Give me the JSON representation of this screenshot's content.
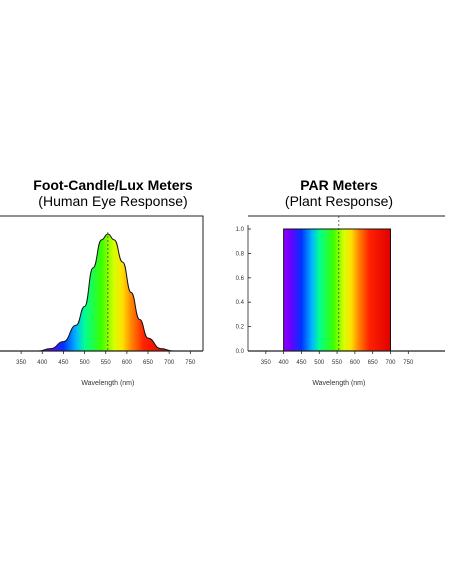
{
  "chart_data": [
    {
      "type": "area",
      "title": "Foot-Candle/Lux Meters",
      "subtitle": "(Human Eye Response)",
      "xlabel": "Wavelength (nm)",
      "ylabel": "",
      "xlim": [
        300,
        780
      ],
      "ylim": [
        0,
        1.0
      ],
      "x_ticks": [
        350,
        400,
        450,
        500,
        550,
        600,
        650,
        700,
        750
      ],
      "x": [
        390,
        420,
        450,
        480,
        500,
        520,
        540,
        555,
        570,
        590,
        610,
        630,
        650,
        680,
        710
      ],
      "values": [
        0.0,
        0.02,
        0.08,
        0.22,
        0.38,
        0.71,
        0.95,
        1.0,
        0.95,
        0.76,
        0.5,
        0.27,
        0.11,
        0.02,
        0.0
      ],
      "peak_marker_x": 555
    },
    {
      "type": "area",
      "title": "PAR Meters",
      "subtitle": "(Plant Response)",
      "xlabel": "Wavelength (nm)",
      "ylabel": "",
      "xlim": [
        300,
        780
      ],
      "ylim": [
        0,
        1.0
      ],
      "x_ticks": [
        350,
        400,
        450,
        500,
        550,
        600,
        650,
        700,
        750
      ],
      "y_ticks": [
        "0.0",
        "0.2",
        "0.4",
        "0.6",
        "0.8",
        "1.0"
      ],
      "x": [
        370,
        400,
        700
      ],
      "values": [
        0.0,
        1.0,
        1.0
      ],
      "band": [
        400,
        700
      ],
      "peak_marker_x": 555
    }
  ]
}
